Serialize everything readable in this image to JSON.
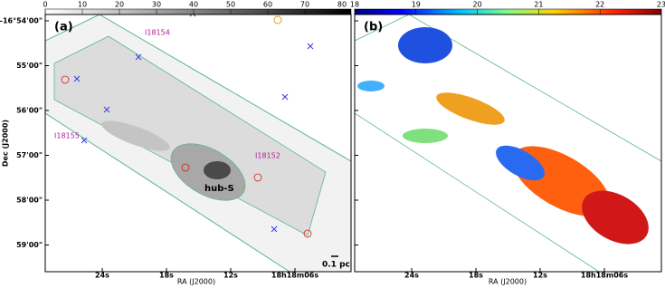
{
  "panel_a": {
    "label": "(a)",
    "colorbar_ticks": [
      0,
      10,
      20,
      30,
      40,
      50,
      60,
      70,
      80
    ],
    "yticks": [
      "-16°54'00\"",
      "55'00\"",
      "56'00\"",
      "57'00\"",
      "58'00\"",
      "59'00\""
    ],
    "xticks": [
      "24s",
      "18s",
      "12s",
      "18h18m06s"
    ],
    "xlabel": "RA (J2000)",
    "ylabel": "Dec (J2000)",
    "annotations": [
      "I18154",
      "I18155",
      "I18152",
      "hub-S"
    ],
    "scalebar": "0.1 pc"
  },
  "panel_b": {
    "label": "(b)",
    "colorbar_ticks": [
      18,
      19,
      20,
      21,
      22,
      23
    ],
    "xticks": [
      "24s",
      "18s",
      "12s",
      "18h18m06s"
    ],
    "xlabel": "RA (J2000)"
  }
}
